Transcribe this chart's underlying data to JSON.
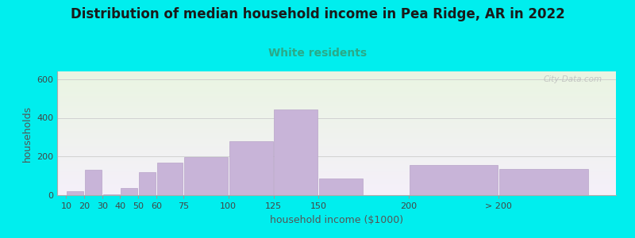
{
  "title": "Distribution of median household income in Pea Ridge, AR in 2022",
  "subtitle": "White residents",
  "xlabel": "household income ($1000)",
  "ylabel": "households",
  "background_color": "#00EEEE",
  "plot_bg_top": "#eaf5e2",
  "plot_bg_bottom": "#f5f0fa",
  "bar_color": "#c8b4d8",
  "bar_edge_color": "#b8a4c8",
  "title_fontsize": 12,
  "subtitle_fontsize": 10,
  "subtitle_color": "#2aaa88",
  "tick_color": "#444444",
  "label_color": "#555555",
  "values": [
    20,
    130,
    5,
    35,
    120,
    170,
    195,
    280,
    445,
    85,
    155,
    135
  ],
  "bar_lefts": [
    10,
    20,
    30,
    40,
    50,
    60,
    75,
    100,
    125,
    150,
    200,
    250
  ],
  "bar_widths": [
    10,
    10,
    10,
    10,
    10,
    15,
    25,
    25,
    25,
    25,
    50,
    50
  ],
  "xlim": [
    5,
    315
  ],
  "ylim": [
    0,
    640
  ],
  "yticks": [
    0,
    200,
    400,
    600
  ],
  "xtick_positions": [
    10,
    20,
    30,
    40,
    50,
    60,
    75,
    100,
    125,
    150,
    200,
    250
  ],
  "xtick_labels": [
    "10",
    "20",
    "30",
    "40",
    "50",
    "60",
    "75",
    "100",
    "125",
    "150",
    "200",
    "> 200"
  ],
  "watermark_text": "City-Data.com"
}
